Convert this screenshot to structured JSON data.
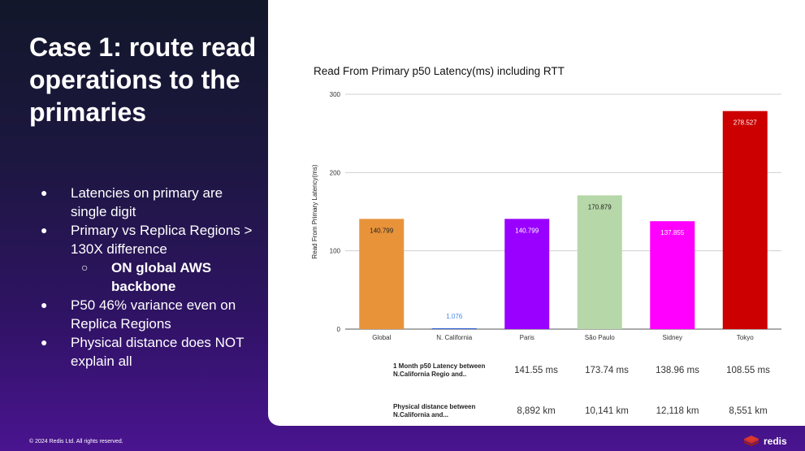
{
  "slide": {
    "title": "Case 1: route read operations to the primaries",
    "bullets": {
      "b1": "Latencies on primary are single digit",
      "b2": "Primary vs Replica Regions > 130X difference",
      "sub1": "ON global AWS backbone",
      "b3": "P50 46% variance even on Replica Regions",
      "b4": "Physical distance does NOT explain all"
    },
    "footer": "© 2024 Redis Ltd. All rights reserved.",
    "brand": "redis"
  },
  "chart_data": {
    "type": "bar",
    "title": "Read From Primary p50 Latency(ms) including RTT",
    "xlabel": "",
    "ylabel": "Read From Primary Latency(ms)",
    "ylim": [
      0,
      300
    ],
    "yticks": [
      "0",
      "100",
      "200",
      "300"
    ],
    "grid": true,
    "categories": [
      "Global",
      "N. California",
      "Paris",
      "São Paulo",
      "Sidney",
      "Tokyo"
    ],
    "values": [
      140.799,
      1.076,
      140.799,
      170.879,
      137.855,
      278.527
    ],
    "labels": [
      "140.799",
      "1.076",
      "140.799",
      "170.879",
      "137.855",
      "278.527"
    ],
    "colors": [
      "#e8933a",
      "#2a5bd7",
      "#9900ff",
      "#b6d7a8",
      "#ff00ff",
      "#cc0000"
    ],
    "label_colors": [
      "#222222",
      "#4a86e8",
      "#ffffff",
      "#222222",
      "#ffffff",
      "#ffffff"
    ]
  },
  "table": {
    "rows": [
      {
        "label": "1 Month p50 Latency between N.California Regio and..",
        "values": [
          "141.55 ms",
          "173.74 ms",
          "138.96 ms",
          "108.55 ms"
        ]
      },
      {
        "label": "Physical distance between N.California and...",
        "values": [
          "8,892 km",
          "10,141 km",
          "12,118 km",
          "8,551 km"
        ]
      }
    ]
  }
}
